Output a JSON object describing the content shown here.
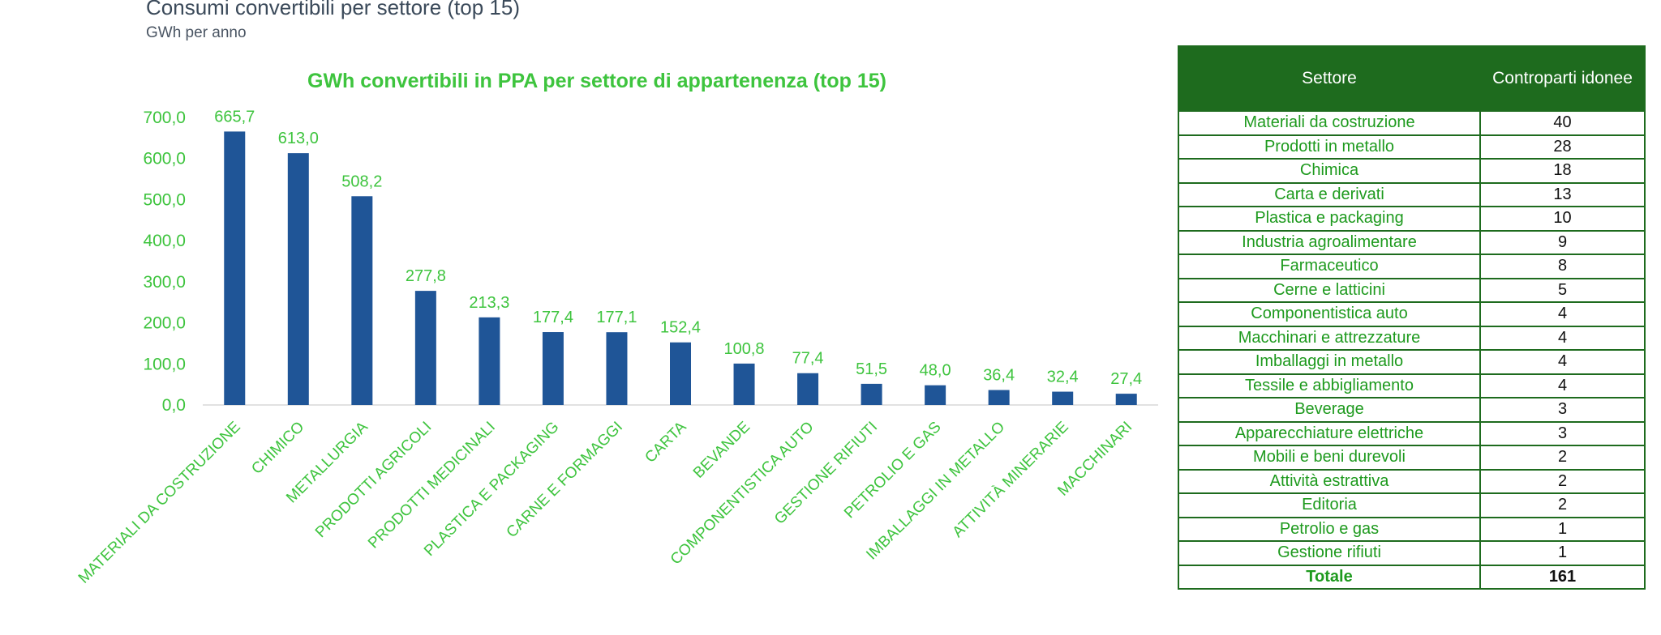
{
  "header": {
    "title": "Consumi convertibili per settore (top 15)",
    "subtitle": "GWh per anno"
  },
  "colors": {
    "bar": "#1f5597",
    "green_text": "#3ec43e",
    "table_header_bg": "#1e6b1e"
  },
  "chart_data": {
    "type": "bar",
    "title": "GWh convertibili in PPA per settore di appartenenza (top 15)",
    "xlabel": "",
    "ylabel": "",
    "ylim": [
      0,
      700
    ],
    "yticks": [
      "0,0",
      "100,0",
      "200,0",
      "300,0",
      "400,0",
      "500,0",
      "600,0",
      "700,0"
    ],
    "ytick_values": [
      0,
      100,
      200,
      300,
      400,
      500,
      600,
      700
    ],
    "grid": false,
    "categories": [
      "MATERIALI DA COSTRUZIONE",
      "CHIMICO",
      "METALLURGIA",
      "PRODOTTI AGRICOLI",
      "PRODOTTI MEDICINALI",
      "PLASTICA E PACKAGING",
      "CARNE E FORMAGGI",
      "CARTA",
      "BEVANDE",
      "COMPONENTISTICA AUTO",
      "GESTIONE RIFIUTI",
      "PETROLIO E GAS",
      "IMBALLAGGI IN METALLO",
      "ATTIVITÀ MINERARIE",
      "MACCHINARI"
    ],
    "values": [
      665.7,
      613.0,
      508.2,
      277.8,
      213.3,
      177.4,
      177.1,
      152.4,
      100.8,
      77.4,
      51.5,
      48.0,
      36.4,
      32.4,
      27.4
    ],
    "value_labels": [
      "665,7",
      "613,0",
      "508,2",
      "277,8",
      "213,3",
      "177,4",
      "177,1",
      "152,4",
      "100,8",
      "77,4",
      "51,5",
      "48,0",
      "36,4",
      "32,4",
      "27,4"
    ]
  },
  "table": {
    "headers": [
      "Settore",
      "Controparti idonee"
    ],
    "rows": [
      {
        "sector": "Materiali da costruzione",
        "count": "40"
      },
      {
        "sector": "Prodotti in metallo",
        "count": "28"
      },
      {
        "sector": "Chimica",
        "count": "18"
      },
      {
        "sector": "Carta e derivati",
        "count": "13"
      },
      {
        "sector": "Plastica e packaging",
        "count": "10"
      },
      {
        "sector": "Industria agroalimentare",
        "count": "9"
      },
      {
        "sector": "Farmaceutico",
        "count": "8"
      },
      {
        "sector": "Cerne e latticini",
        "count": "5"
      },
      {
        "sector": "Componentistica auto",
        "count": "4"
      },
      {
        "sector": "Macchinari e attrezzature",
        "count": "4"
      },
      {
        "sector": "Imballaggi in metallo",
        "count": "4"
      },
      {
        "sector": "Tessile e abbigliamento",
        "count": "4"
      },
      {
        "sector": "Beverage",
        "count": "3"
      },
      {
        "sector": "Apparecchiature elettriche",
        "count": "3"
      },
      {
        "sector": "Mobili e beni durevoli",
        "count": "2"
      },
      {
        "sector": "Attività estrattiva",
        "count": "2"
      },
      {
        "sector": "Editoria",
        "count": "2"
      },
      {
        "sector": "Petrolio e gas",
        "count": "1"
      },
      {
        "sector": "Gestione rifiuti",
        "count": "1"
      }
    ],
    "total": {
      "label": "Totale",
      "value": "161"
    }
  }
}
